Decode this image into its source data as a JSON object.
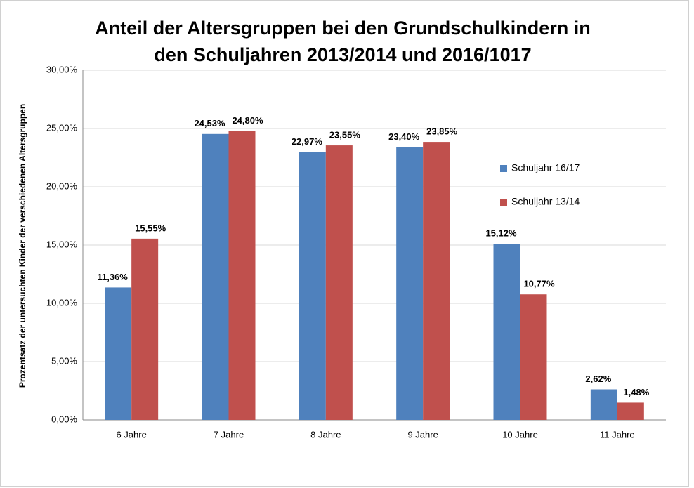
{
  "chart_data": {
    "type": "bar",
    "title": [
      "Anteil der Altersgruppen bei den Grundschulkindern  in",
      "den Schuljahren 2013/2014 und 2016/1017"
    ],
    "y_label": "Prozentsatz der untersuchten Kinder der verschiedenen Altersgruppen",
    "categories": [
      "6 Jahre",
      "7 Jahre",
      "8 Jahre",
      "9 Jahre",
      "10 Jahre",
      "11 Jahre"
    ],
    "series": [
      {
        "name": "Schuljahr 16/17",
        "color": "#4f81bd",
        "values": [
          11.36,
          24.53,
          22.97,
          23.4,
          15.12,
          2.62
        ],
        "value_labels": [
          "11,36%",
          "24,53%",
          "22,97%",
          "23,40%",
          "15,12%",
          "2,62%"
        ]
      },
      {
        "name": "Schuljahr 13/14",
        "color": "#c0504d",
        "values": [
          15.55,
          24.8,
          23.55,
          23.85,
          10.77,
          1.48
        ],
        "value_labels": [
          "15,55%",
          "24,80%",
          "23,55%",
          "23,85%",
          "10,77%",
          "1,48%"
        ]
      }
    ],
    "ylim": [
      0,
      30
    ],
    "yticks": [
      {
        "value": 0,
        "label": "0,00%"
      },
      {
        "value": 5,
        "label": "5,00%"
      },
      {
        "value": 10,
        "label": "10,00%"
      },
      {
        "value": 15,
        "label": "15,00%"
      },
      {
        "value": 20,
        "label": "20,00%"
      },
      {
        "value": 25,
        "label": "25,00%"
      },
      {
        "value": 30,
        "label": "30,00%"
      }
    ],
    "grid": true,
    "legend": "right"
  }
}
